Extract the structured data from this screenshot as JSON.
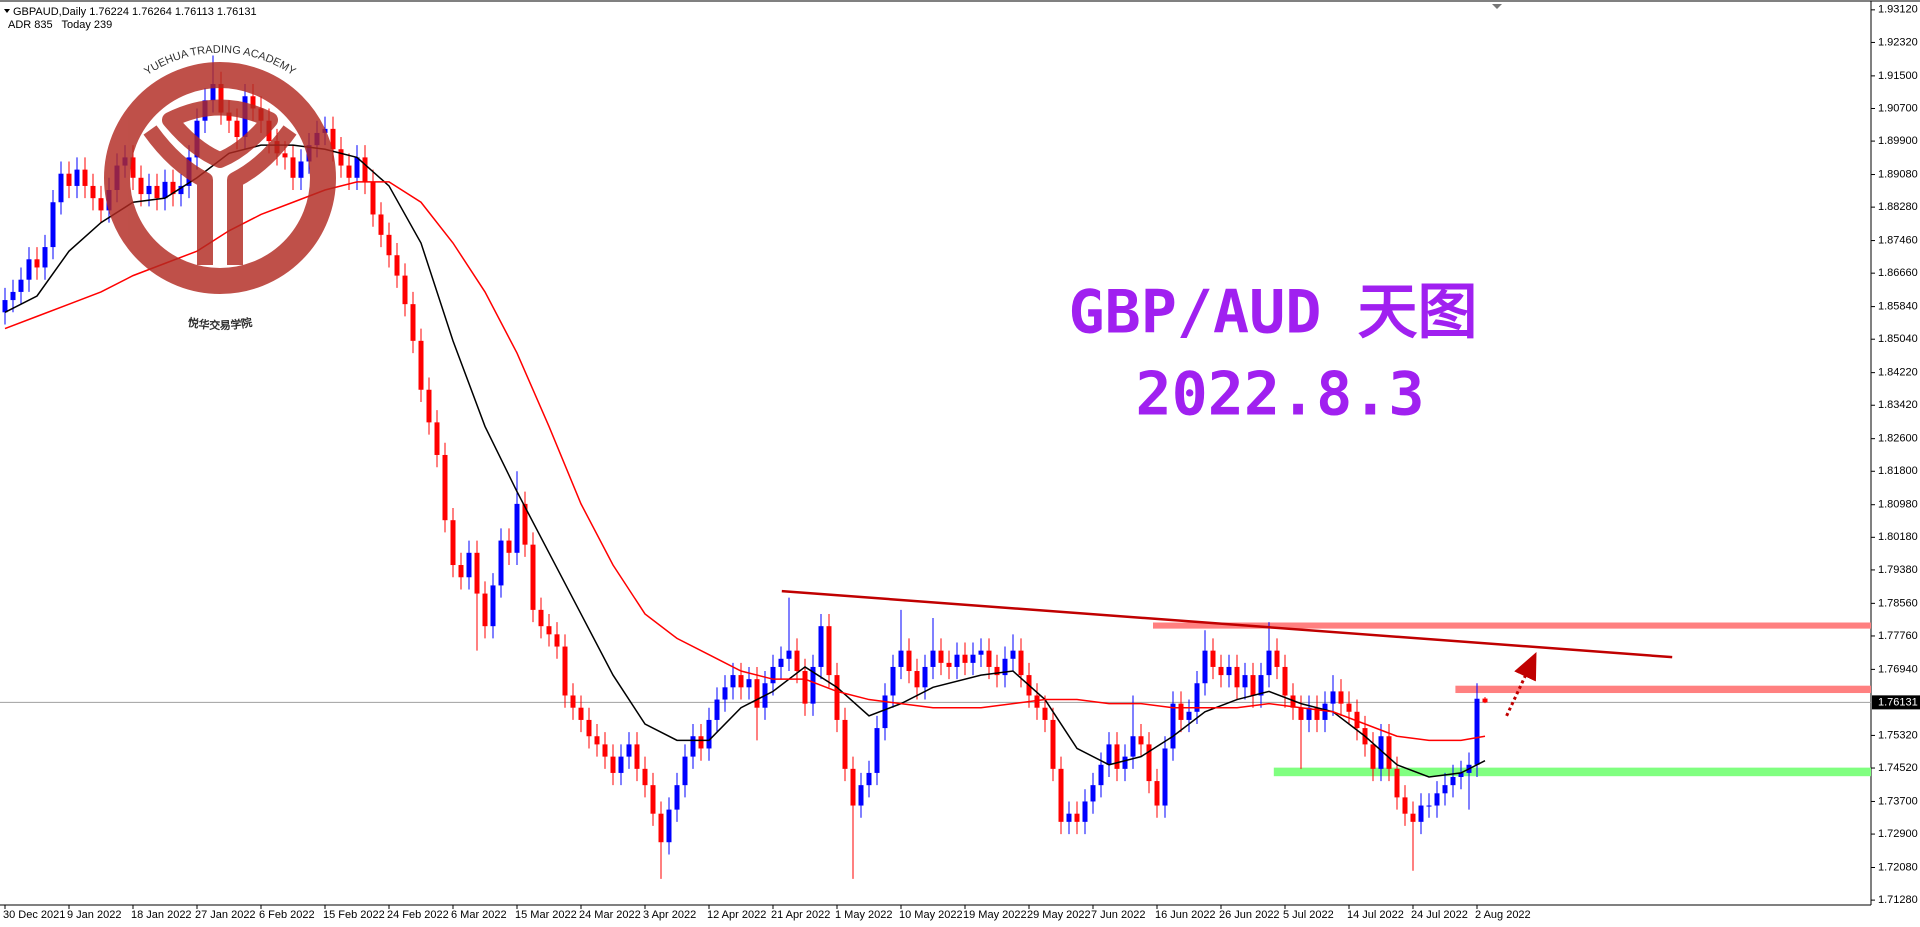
{
  "chart_data": {
    "type": "candlestick",
    "symbol": "GBPAUD,Daily",
    "adr": "ADR 835",
    "today": "Today 239",
    "title": "GBP/AUD 天图",
    "subtitle": "2022.8.3",
    "watermark": {
      "text": "YUEHUA TRADING ACADEMY",
      "text_cn": "悦华交易学院"
    },
    "up_color": "#0000ff",
    "down_color": "#ff0000",
    "categories": [
      "30 Dec 2021",
      null,
      null,
      null,
      null,
      null,
      null,
      null,
      "9 Jan 2022",
      null,
      null,
      null,
      null,
      null,
      null,
      null,
      "18 Jan 2022",
      null,
      null,
      null,
      null,
      null,
      null,
      null,
      "27 Jan 2022",
      null,
      null,
      null,
      null,
      null,
      null,
      null,
      "6 Feb 2022",
      null,
      null,
      null,
      null,
      null,
      null,
      null,
      "15 Feb 2022",
      null,
      null,
      null,
      null,
      null,
      null,
      null,
      "24 Feb 2022",
      null,
      null,
      null,
      null,
      null,
      null,
      null,
      "6 Mar 2022",
      null,
      null,
      null,
      null,
      null,
      null,
      null,
      "15 Mar 2022",
      null,
      null,
      null,
      null,
      null,
      null,
      null,
      "24 Mar 2022",
      null,
      null,
      null,
      null,
      null,
      null,
      null,
      "3 Apr 2022",
      null,
      null,
      null,
      null,
      null,
      null,
      null,
      "12 Apr 2022",
      null,
      null,
      null,
      null,
      null,
      null,
      null,
      "21 Apr 2022",
      null,
      null,
      null,
      null,
      null,
      null,
      null,
      "1 May 2022",
      null,
      null,
      null,
      null,
      null,
      null,
      null,
      "10 May 2022",
      null,
      null,
      null,
      null,
      null,
      null,
      null,
      "19 May 2022",
      null,
      null,
      null,
      null,
      null,
      null,
      null,
      "29 May 2022",
      null,
      null,
      null,
      null,
      null,
      null,
      null,
      "7 Jun 2022",
      null,
      null,
      null,
      null,
      null,
      null,
      null,
      "16 Jun 2022",
      null,
      null,
      null,
      null,
      null,
      null,
      null,
      "26 Jun 2022",
      null,
      null,
      null,
      null,
      null,
      null,
      null,
      "5 Jul 2022",
      null,
      null,
      null,
      null,
      null,
      null,
      null,
      "14 Jul 2022",
      null,
      null,
      null,
      null,
      null,
      null,
      null,
      "24 Jul 2022",
      null,
      null,
      null,
      null,
      null,
      null,
      null,
      "2 Aug 2022",
      null
    ],
    "open": [
      1.857,
      1.86,
      1.862,
      1.865,
      1.87,
      1.868,
      1.873,
      1.884,
      1.891,
      1.888,
      1.892,
      1.888,
      1.885,
      1.882,
      1.887,
      1.893,
      1.895,
      1.89,
      1.886,
      1.888,
      1.885,
      1.889,
      1.886,
      1.888,
      1.895,
      1.904,
      1.909,
      1.913,
      1.906,
      1.904,
      1.9,
      1.91,
      1.907,
      1.904,
      1.899,
      1.896,
      1.895,
      1.89,
      1.894,
      1.898,
      1.901,
      1.902,
      1.897,
      1.893,
      1.89,
      1.895,
      1.889,
      1.881,
      1.876,
      1.871,
      1.866,
      1.859,
      1.85,
      1.838,
      1.83,
      1.822,
      1.806,
      1.795,
      1.792,
      1.798,
      1.788,
      1.78,
      1.79,
      1.801,
      1.798,
      1.81,
      1.8,
      1.784,
      1.78,
      1.778,
      1.775,
      1.763,
      1.76,
      1.757,
      1.753,
      1.751,
      1.748,
      1.744,
      1.748,
      1.751,
      1.745,
      1.741,
      1.734,
      1.727,
      1.735,
      1.741,
      1.748,
      1.753,
      1.75,
      1.757,
      1.762,
      1.765,
      1.768,
      1.765,
      1.767,
      1.76,
      1.766,
      1.77,
      1.772,
      1.774,
      1.769,
      1.761,
      1.77,
      1.78,
      1.768,
      1.757,
      1.745,
      1.736,
      1.741,
      1.744,
      1.755,
      1.763,
      1.77,
      1.774,
      1.769,
      1.765,
      1.77,
      1.774,
      1.771,
      1.77,
      1.773,
      1.771,
      1.773,
      1.774,
      1.77,
      1.768,
      1.772,
      1.774,
      1.768,
      1.763,
      1.76,
      1.757,
      1.745,
      1.732,
      1.734,
      1.732,
      1.737,
      1.741,
      1.746,
      1.751,
      1.745,
      1.748,
      1.753,
      1.751,
      1.742,
      1.736,
      1.75,
      1.761,
      1.757,
      1.759,
      1.766,
      1.774,
      1.77,
      1.768,
      1.77,
      1.765,
      1.768,
      1.763,
      1.768,
      1.774,
      1.77,
      1.763,
      1.76,
      1.757,
      1.76,
      1.757,
      1.761,
      1.764,
      1.761,
      1.759,
      1.755,
      1.751,
      1.745,
      1.753,
      1.745,
      1.738,
      1.734,
      1.732,
      1.736,
      1.736,
      1.739,
      1.741,
      1.743,
      1.744,
      1.746,
      1.76224
    ],
    "high": [
      1.863,
      1.865,
      1.868,
      1.873,
      1.873,
      1.876,
      1.887,
      1.894,
      1.894,
      1.895,
      1.895,
      1.891,
      1.888,
      1.89,
      1.896,
      1.898,
      1.898,
      1.893,
      1.891,
      1.891,
      1.892,
      1.892,
      1.891,
      1.898,
      1.907,
      1.912,
      1.92,
      1.916,
      1.909,
      1.907,
      1.913,
      1.913,
      1.91,
      1.907,
      1.902,
      1.899,
      1.898,
      1.897,
      1.901,
      1.904,
      1.905,
      1.905,
      1.9,
      1.896,
      1.898,
      1.898,
      1.892,
      1.884,
      1.879,
      1.874,
      1.869,
      1.862,
      1.853,
      1.841,
      1.833,
      1.825,
      1.809,
      1.798,
      1.801,
      1.801,
      1.791,
      1.793,
      1.804,
      1.804,
      1.818,
      1.813,
      1.803,
      1.787,
      1.783,
      1.781,
      1.778,
      1.766,
      1.763,
      1.76,
      1.756,
      1.754,
      1.751,
      1.751,
      1.754,
      1.754,
      1.748,
      1.744,
      1.737,
      1.738,
      1.744,
      1.751,
      1.756,
      1.756,
      1.76,
      1.765,
      1.768,
      1.771,
      1.771,
      1.77,
      1.77,
      1.769,
      1.773,
      1.775,
      1.787,
      1.777,
      1.772,
      1.773,
      1.783,
      1.783,
      1.771,
      1.76,
      1.748,
      1.744,
      1.747,
      1.758,
      1.766,
      1.773,
      1.784,
      1.777,
      1.772,
      1.773,
      1.782,
      1.777,
      1.774,
      1.776,
      1.776,
      1.776,
      1.777,
      1.777,
      1.773,
      1.775,
      1.778,
      1.777,
      1.771,
      1.766,
      1.763,
      1.76,
      1.748,
      1.737,
      1.737,
      1.74,
      1.744,
      1.749,
      1.754,
      1.754,
      1.751,
      1.763,
      1.756,
      1.754,
      1.745,
      1.753,
      1.764,
      1.764,
      1.762,
      1.769,
      1.779,
      1.777,
      1.773,
      1.773,
      1.773,
      1.771,
      1.771,
      1.771,
      1.781,
      1.777,
      1.773,
      1.766,
      1.763,
      1.763,
      1.763,
      1.764,
      1.768,
      1.767,
      1.764,
      1.762,
      1.758,
      1.754,
      1.756,
      1.756,
      1.748,
      1.741,
      1.737,
      1.739,
      1.739,
      1.742,
      1.744,
      1.746,
      1.747,
      1.749,
      1.766,
      1.76264
    ],
    "low": [
      1.854,
      1.857,
      1.859,
      1.862,
      1.865,
      1.865,
      1.87,
      1.881,
      1.885,
      1.885,
      1.885,
      1.882,
      1.879,
      1.879,
      1.884,
      1.89,
      1.887,
      1.883,
      1.883,
      1.882,
      1.882,
      1.883,
      1.883,
      1.885,
      1.892,
      1.901,
      1.906,
      1.903,
      1.901,
      1.897,
      1.897,
      1.904,
      1.901,
      1.896,
      1.893,
      1.892,
      1.887,
      1.887,
      1.891,
      1.895,
      1.898,
      1.894,
      1.89,
      1.887,
      1.887,
      1.886,
      1.878,
      1.873,
      1.868,
      1.863,
      1.856,
      1.847,
      1.835,
      1.827,
      1.819,
      1.803,
      1.792,
      1.789,
      1.789,
      1.774,
      1.777,
      1.777,
      1.787,
      1.795,
      1.795,
      1.797,
      1.781,
      1.777,
      1.775,
      1.772,
      1.76,
      1.757,
      1.754,
      1.75,
      1.748,
      1.745,
      1.741,
      1.741,
      1.745,
      1.742,
      1.738,
      1.731,
      1.718,
      1.724,
      1.732,
      1.738,
      1.745,
      1.747,
      1.747,
      1.754,
      1.759,
      1.762,
      1.762,
      1.762,
      1.752,
      1.757,
      1.763,
      1.767,
      1.769,
      1.766,
      1.758,
      1.758,
      1.767,
      1.765,
      1.754,
      1.742,
      1.718,
      1.733,
      1.738,
      1.741,
      1.752,
      1.76,
      1.767,
      1.766,
      1.762,
      1.762,
      1.767,
      1.768,
      1.767,
      1.767,
      1.768,
      1.768,
      1.77,
      1.767,
      1.765,
      1.765,
      1.769,
      1.765,
      1.76,
      1.757,
      1.754,
      1.742,
      1.729,
      1.729,
      1.729,
      1.729,
      1.734,
      1.738,
      1.743,
      1.742,
      1.742,
      1.745,
      1.748,
      1.739,
      1.733,
      1.733,
      1.747,
      1.754,
      1.754,
      1.756,
      1.763,
      1.767,
      1.765,
      1.765,
      1.762,
      1.762,
      1.76,
      1.76,
      1.765,
      1.767,
      1.76,
      1.757,
      1.745,
      1.754,
      1.754,
      1.754,
      1.758,
      1.758,
      1.756,
      1.752,
      1.748,
      1.742,
      1.742,
      1.742,
      1.735,
      1.731,
      1.72,
      1.729,
      1.733,
      1.733,
      1.736,
      1.738,
      1.74,
      1.735,
      1.743,
      1.76113
    ],
    "close": [
      1.86,
      1.862,
      1.865,
      1.87,
      1.868,
      1.873,
      1.884,
      1.891,
      1.888,
      1.892,
      1.888,
      1.885,
      1.882,
      1.887,
      1.893,
      1.895,
      1.89,
      1.886,
      1.888,
      1.885,
      1.889,
      1.886,
      1.888,
      1.895,
      1.904,
      1.909,
      1.913,
      1.906,
      1.904,
      1.9,
      1.91,
      1.907,
      1.904,
      1.899,
      1.896,
      1.895,
      1.89,
      1.894,
      1.898,
      1.901,
      1.902,
      1.897,
      1.893,
      1.89,
      1.895,
      1.889,
      1.881,
      1.876,
      1.871,
      1.866,
      1.859,
      1.85,
      1.838,
      1.83,
      1.822,
      1.806,
      1.795,
      1.792,
      1.798,
      1.788,
      1.78,
      1.79,
      1.801,
      1.798,
      1.81,
      1.8,
      1.784,
      1.78,
      1.778,
      1.775,
      1.763,
      1.76,
      1.757,
      1.753,
      1.751,
      1.748,
      1.744,
      1.748,
      1.751,
      1.745,
      1.741,
      1.734,
      1.727,
      1.735,
      1.741,
      1.748,
      1.753,
      1.75,
      1.757,
      1.762,
      1.765,
      1.768,
      1.765,
      1.767,
      1.76,
      1.766,
      1.77,
      1.772,
      1.774,
      1.769,
      1.761,
      1.77,
      1.78,
      1.768,
      1.757,
      1.745,
      1.736,
      1.741,
      1.744,
      1.755,
      1.763,
      1.77,
      1.774,
      1.769,
      1.765,
      1.77,
      1.774,
      1.771,
      1.77,
      1.773,
      1.771,
      1.773,
      1.774,
      1.77,
      1.768,
      1.772,
      1.774,
      1.768,
      1.763,
      1.76,
      1.757,
      1.745,
      1.732,
      1.734,
      1.732,
      1.737,
      1.741,
      1.746,
      1.751,
      1.745,
      1.748,
      1.753,
      1.751,
      1.742,
      1.736,
      1.75,
      1.761,
      1.757,
      1.759,
      1.766,
      1.774,
      1.77,
      1.768,
      1.77,
      1.765,
      1.768,
      1.763,
      1.768,
      1.774,
      1.77,
      1.763,
      1.76,
      1.757,
      1.76,
      1.757,
      1.761,
      1.764,
      1.761,
      1.759,
      1.755,
      1.751,
      1.745,
      1.753,
      1.745,
      1.738,
      1.734,
      1.732,
      1.736,
      1.736,
      1.739,
      1.741,
      1.743,
      1.744,
      1.746,
      1.7622,
      1.76131
    ],
    "overlays": [
      {
        "color": "#000000",
        "x": [
          0,
          4,
          8,
          12,
          16,
          20,
          24,
          28,
          32,
          36,
          40,
          44,
          48,
          52,
          56,
          60,
          64,
          68,
          72,
          76,
          80,
          84,
          88,
          92,
          96,
          100,
          104,
          108,
          112,
          116,
          122,
          126,
          130,
          134,
          138,
          142,
          146,
          150,
          154,
          158,
          162,
          166,
          170,
          174,
          178,
          182,
          185
        ],
        "values": [
          1.857,
          1.861,
          1.872,
          1.879,
          1.884,
          1.885,
          1.89,
          1.896,
          1.898,
          1.898,
          1.897,
          1.895,
          1.888,
          1.874,
          1.85,
          1.829,
          1.813,
          1.798,
          1.783,
          1.768,
          1.756,
          1.752,
          1.752,
          1.76,
          1.764,
          1.77,
          1.765,
          1.758,
          1.761,
          1.765,
          1.768,
          1.769,
          1.762,
          1.75,
          1.746,
          1.748,
          1.753,
          1.759,
          1.762,
          1.764,
          1.761,
          1.759,
          1.753,
          1.746,
          1.743,
          1.744,
          1.747
        ]
      },
      {
        "color": "#ff0000",
        "x": [
          0,
          4,
          8,
          12,
          16,
          20,
          24,
          28,
          32,
          36,
          40,
          44,
          48,
          52,
          56,
          60,
          64,
          68,
          72,
          76,
          80,
          84,
          88,
          92,
          96,
          100,
          104,
          108,
          112,
          116,
          122,
          126,
          130,
          134,
          138,
          142,
          146,
          150,
          154,
          158,
          162,
          166,
          170,
          174,
          178,
          182,
          185
        ],
        "values": [
          1.853,
          1.856,
          1.859,
          1.862,
          1.866,
          1.869,
          1.872,
          1.877,
          1.881,
          1.884,
          1.887,
          1.889,
          1.889,
          1.884,
          1.874,
          1.862,
          1.847,
          1.829,
          1.81,
          1.795,
          1.783,
          1.777,
          1.773,
          1.769,
          1.767,
          1.767,
          1.764,
          1.762,
          1.761,
          1.76,
          1.76,
          1.761,
          1.762,
          1.762,
          1.761,
          1.761,
          1.76,
          1.76,
          1.76,
          1.761,
          1.76,
          1.759,
          1.756,
          1.753,
          1.752,
          1.752,
          1.753
        ]
      }
    ],
    "trendline": {
      "color": "#c00000",
      "x": [
        97.1,
        208.4
      ],
      "values": [
        1.7886,
        1.7724
      ]
    },
    "zones": [
      {
        "color": "#ff8080",
        "x_start": 143.5,
        "values": [
          1.7809,
          1.7794
        ]
      },
      {
        "color": "#ff8080",
        "x_start": 181.3,
        "values": [
          1.7654,
          1.7636
        ]
      },
      {
        "color": "#80ff80",
        "x_start": 158.6,
        "values": [
          1.7453,
          1.7432
        ]
      }
    ],
    "arrow": {
      "color": "#c00000",
      "x": [
        187.7,
        190.8
      ],
      "values": [
        1.758,
        1.771
      ]
    },
    "ylim": [
      1.7116,
      1.933
    ],
    "yticks": [
      {
        "value": 1.9312,
        "label": "1.93120"
      },
      {
        "value": 1.9232,
        "label": "1.92320"
      },
      {
        "value": 1.915,
        "label": "1.91500"
      },
      {
        "value": 1.907,
        "label": "1.90700"
      },
      {
        "value": 1.899,
        "label": "1.89900"
      },
      {
        "value": 1.8908,
        "label": "1.89080"
      },
      {
        "value": 1.8828,
        "label": "1.88280"
      },
      {
        "value": 1.8746,
        "label": "1.87460"
      },
      {
        "value": 1.8666,
        "label": "1.86660"
      },
      {
        "value": 1.8584,
        "label": "1.85840"
      },
      {
        "value": 1.8504,
        "label": "1.85040"
      },
      {
        "value": 1.8422,
        "label": "1.84220"
      },
      {
        "value": 1.8342,
        "label": "1.83420"
      },
      {
        "value": 1.826,
        "label": "1.82600"
      },
      {
        "value": 1.818,
        "label": "1.81800"
      },
      {
        "value": 1.8098,
        "label": "1.80980"
      },
      {
        "value": 1.8018,
        "label": "1.80180"
      },
      {
        "value": 1.7938,
        "label": "1.79380"
      },
      {
        "value": 1.7856,
        "label": "1.78560"
      },
      {
        "value": 1.7776,
        "label": "1.77760"
      },
      {
        "value": 1.7694,
        "label": "1.76940"
      },
      {
        "value": 1.7532,
        "label": "1.75320"
      },
      {
        "value": 1.7452,
        "label": "1.74520"
      },
      {
        "value": 1.737,
        "label": "1.73700"
      },
      {
        "value": 1.729,
        "label": "1.72900"
      },
      {
        "value": 1.7208,
        "label": "1.72080"
      },
      {
        "value": 1.7128,
        "label": "1.71280"
      }
    ],
    "grid": false
  }
}
